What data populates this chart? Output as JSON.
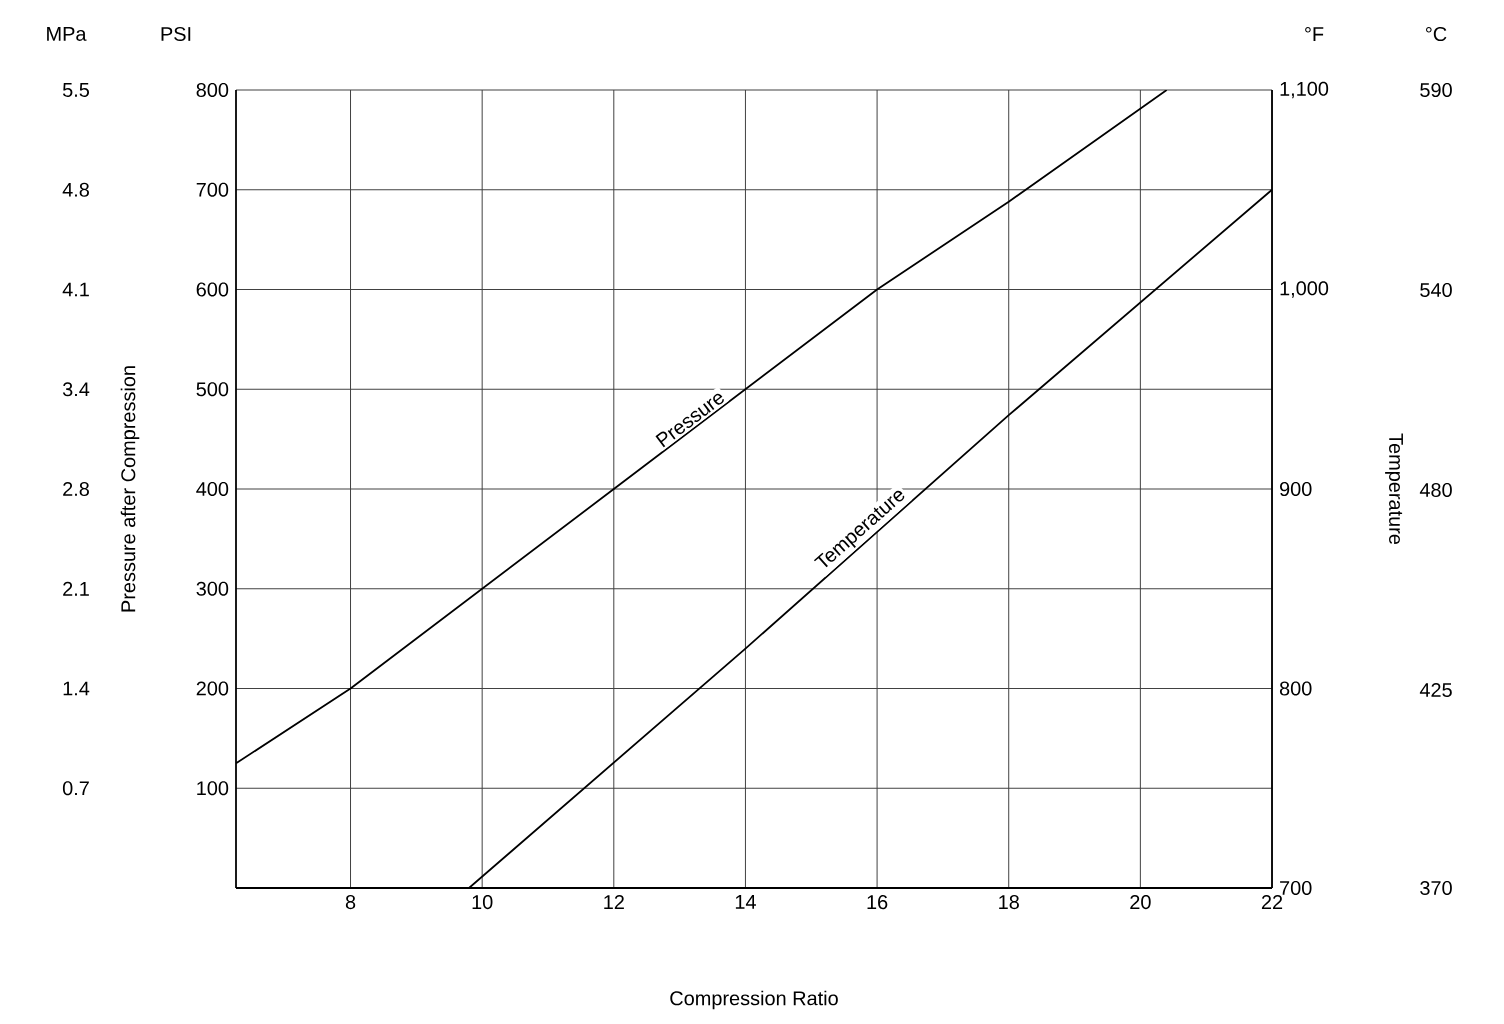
{
  "chart_data": {
    "type": "line",
    "xlabel": "Compression Ratio",
    "ylabel": "Pressure after Compression",
    "y2label": "Temperature",
    "y3label": "MPa",
    "annotations": [
      "PSI",
      "°F",
      "°C",
      "590",
      "540",
      "480",
      "425",
      "370"
    ],
    "xlim": [
      6.26,
      22
    ],
    "xticks": [
      8,
      10,
      12,
      14,
      16,
      18,
      20,
      22
    ],
    "ylim": [
      0,
      800
    ],
    "yticks": [
      100,
      200,
      300,
      400,
      500,
      600,
      700,
      800
    ],
    "y2lim": [
      700,
      1100
    ],
    "y2ticks": [
      700,
      800,
      900,
      {
        "value": 1000,
        "label": "1,000"
      },
      {
        "value": 1100,
        "label": "1,100"
      }
    ],
    "y3lim": [
      0,
      5.52
    ],
    "y3ticks": [
      {
        "value": 0.69,
        "label": "0.7"
      },
      {
        "value": 1.38,
        "label": "1.4"
      },
      {
        "value": 2.07,
        "label": "2.1"
      },
      {
        "value": 2.76,
        "label": "2.8"
      },
      {
        "value": 3.45,
        "label": "3.4"
      },
      {
        "value": 4.14,
        "label": "4.1"
      },
      {
        "value": 4.83,
        "label": "4.8"
      },
      {
        "value": 5.52,
        "label": "5.5"
      }
    ],
    "grid": true,
    "marker": "none",
    "line_style": "solid",
    "series": [
      {
        "name": "Pressure",
        "color": "#000000",
        "x": [
          6.26,
          8,
          12,
          16,
          18,
          20.4
        ],
        "values": [
          125,
          200,
          400,
          600,
          688,
          800
        ]
      },
      {
        "name": "Temperature",
        "color": "#000000",
        "axis": "y2",
        "x": [
          9.8,
          14,
          18,
          22
        ],
        "values": [
          700,
          820,
          937,
          1050
        ]
      }
    ]
  }
}
